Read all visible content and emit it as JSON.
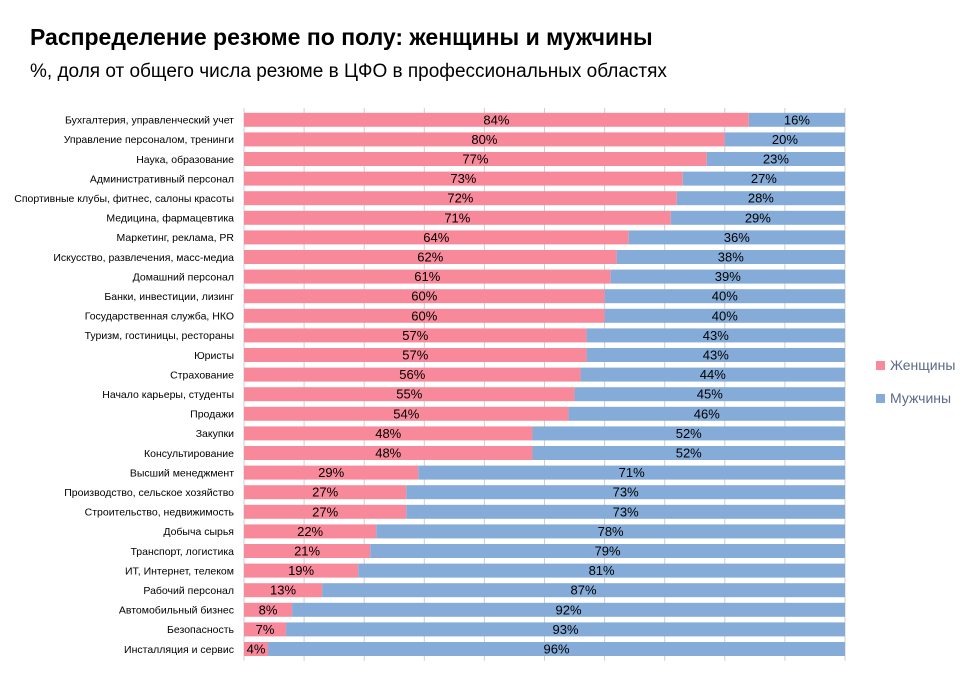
{
  "chart_data": {
    "type": "bar",
    "stacked": "percent",
    "orientation": "horizontal",
    "title": "Распределение резюме по полу: женщины и мужчины",
    "subtitle": "%, доля от общего числа резюме в ЦФО в профессиональных областях",
    "legend_position": "right",
    "grid": true,
    "xlim": [
      0,
      100
    ],
    "categories": [
      "Бухгалтерия, управленческий учет",
      "Управление персоналом, тренинги",
      "Наука, образование",
      "Административный персонал",
      "Спортивные клубы, фитнес, салоны красоты",
      "Медицина, фармацевтика",
      "Маркетинг, реклама, PR",
      "Искусство, развлечения, масс-медиа",
      "Домашний персонал",
      "Банки, инвестиции, лизинг",
      "Государственная служба, НКО",
      "Туризм, гостиницы, рестораны",
      "Юристы",
      "Страхование",
      "Начало карьеры, студенты",
      "Продажи",
      "Закупки",
      "Консультирование",
      "Высший менеджмент",
      "Производство, сельское хозяйство",
      "Строительство, недвижимость",
      "Добыча сырья",
      "Транспорт, логистика",
      "ИТ, Интернет, телеком",
      "Рабочий персонал",
      "Автомобильный бизнес",
      "Безопасность",
      "Инсталляция и сервис"
    ],
    "series": [
      {
        "name": "Женщины",
        "color": "#f8899a",
        "values": [
          84,
          80,
          77,
          73,
          72,
          71,
          64,
          62,
          61,
          60,
          60,
          57,
          57,
          56,
          55,
          54,
          48,
          48,
          29,
          27,
          27,
          22,
          21,
          19,
          13,
          8,
          7,
          4
        ],
        "labels": [
          "84%",
          "80%",
          "77%",
          "73%",
          "72%",
          "71%",
          "64%",
          "62%",
          "61%",
          "60%",
          "60%",
          "57%",
          "57%",
          "56%",
          "55%",
          "54%",
          "48%",
          "48%",
          "29%",
          "27%",
          "27%",
          "22%",
          "21%",
          "19%",
          "13%",
          "8%",
          "7%",
          "4%"
        ]
      },
      {
        "name": "Мужчины",
        "color": "#85acd8",
        "values": [
          16,
          20,
          23,
          27,
          28,
          29,
          36,
          38,
          39,
          40,
          40,
          43,
          43,
          44,
          45,
          46,
          52,
          52,
          71,
          73,
          73,
          78,
          79,
          81,
          87,
          92,
          93,
          96
        ],
        "labels": [
          "16%",
          "20%",
          "23%",
          "27%",
          "28%",
          "29%",
          "36%",
          "38%",
          "39%",
          "40%",
          "40%",
          "43%",
          "43%",
          "44%",
          "45%",
          "46%",
          "52%",
          "52%",
          "71%",
          "73%",
          "73%",
          "78%",
          "79%",
          "81%",
          "87%",
          "92%",
          "93%",
          "96%"
        ]
      }
    ]
  },
  "colors": {
    "women": "#f8899a",
    "men": "#85acd8",
    "grid": "#cfcfcf",
    "legend_text_women": "#5a6a88",
    "legend_text_men": "#5a6a88"
  }
}
